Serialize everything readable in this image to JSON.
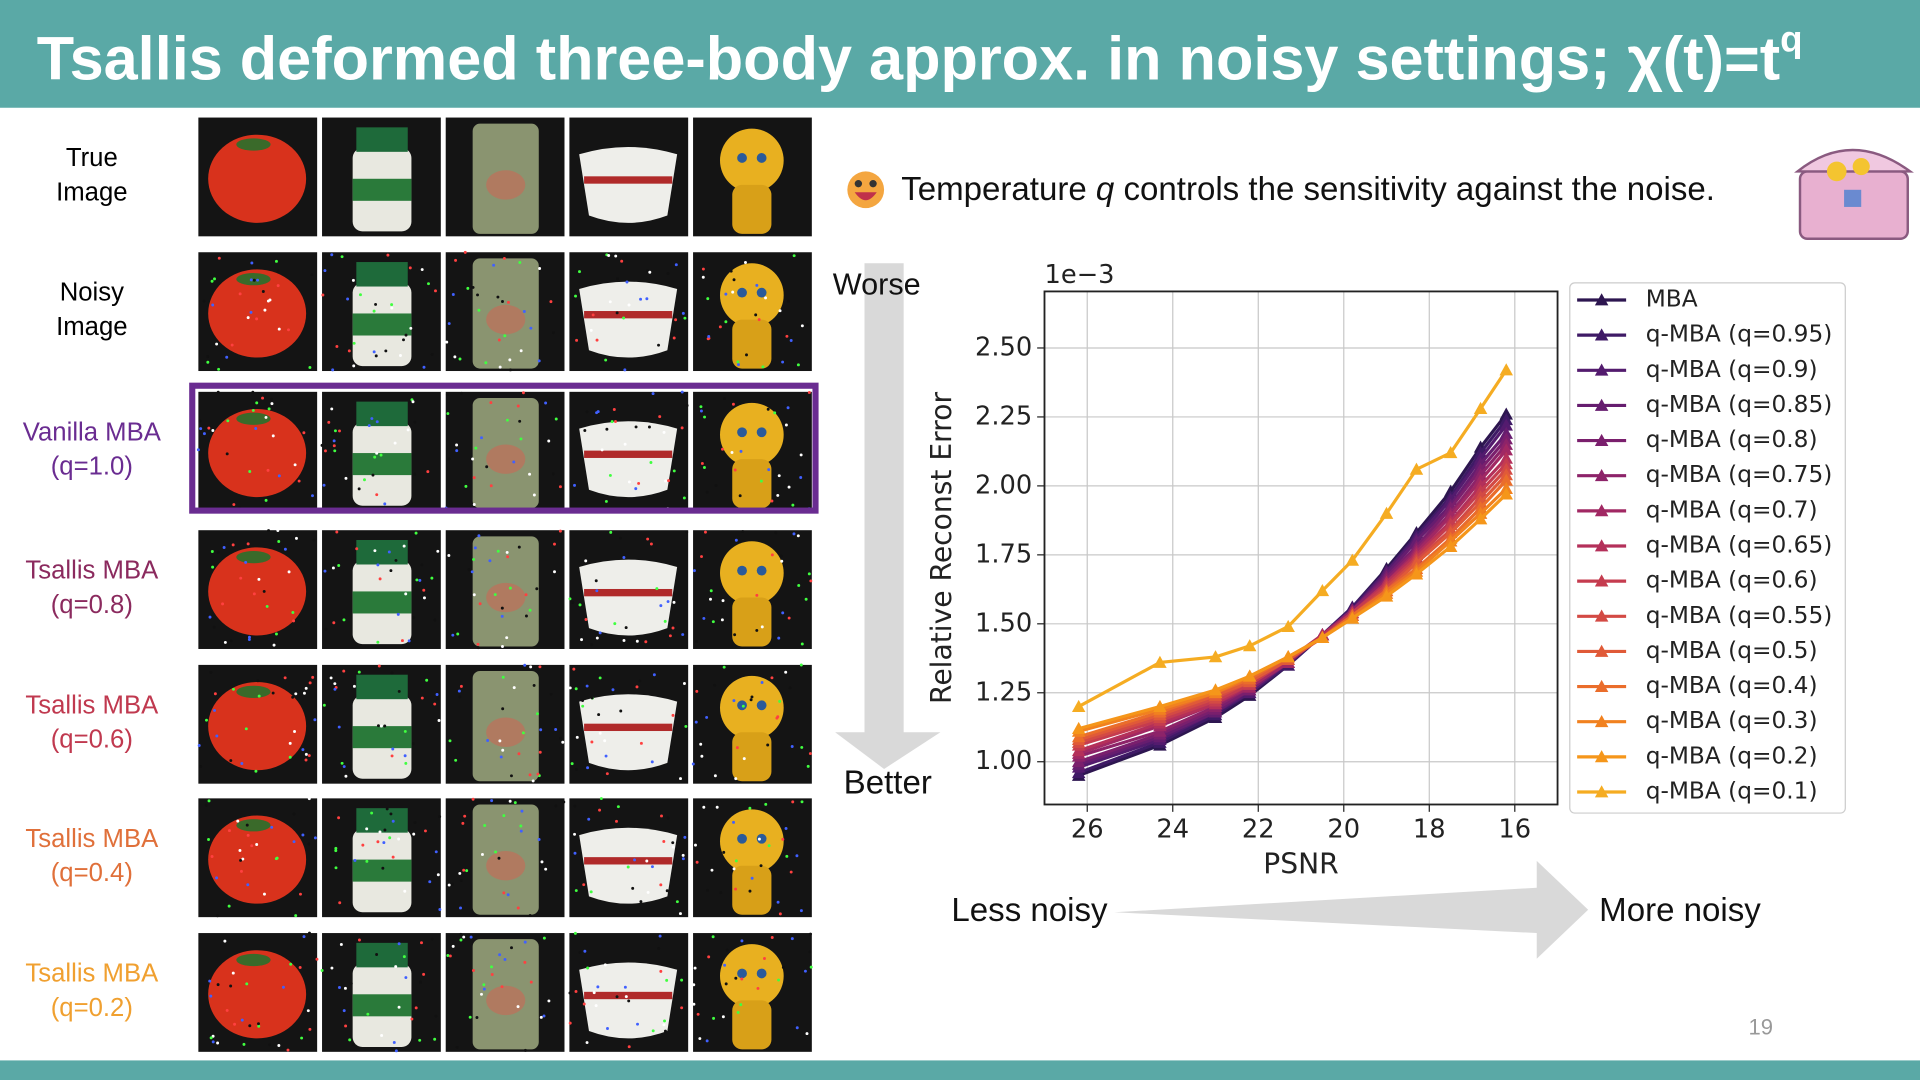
{
  "header": {
    "title": "Tsallis deformed three-body approx. in noisy settings; χ(t)=t",
    "title_superscript": "q"
  },
  "rows": [
    {
      "line1": "True",
      "line2": "Image",
      "color": "#000000"
    },
    {
      "line1": "Noisy",
      "line2": "Image",
      "color": "#000000"
    },
    {
      "line1": "Vanilla MBA",
      "line2": "(q=1.0)",
      "color": "#6a2c91"
    },
    {
      "line1": "Tsallis MBA",
      "line2": "(q=0.8)",
      "color": "#8b2a5e"
    },
    {
      "line1": "Tsallis MBA",
      "line2": "(q=0.6)",
      "color": "#c0394f"
    },
    {
      "line1": "Tsallis MBA",
      "line2": "(q=0.4)",
      "color": "#e0703a"
    },
    {
      "line1": "Tsallis MBA",
      "line2": "(q=0.2)",
      "color": "#f0a030"
    }
  ],
  "note": {
    "before": "Temperature ",
    "italic": "q",
    "after": " controls the sensitivity against the noise."
  },
  "arrows": {
    "top": "Worse",
    "bottom": "Better",
    "left": "Less noisy",
    "right": "More noisy"
  },
  "page_number": "19",
  "chart_data": {
    "type": "line",
    "x_label": "PSNR",
    "y_label": "Relative Reconst Error",
    "y_offset_label": "1e−3",
    "xlim": [
      27.0,
      15.0
    ],
    "ylim": [
      0.845,
      2.705
    ],
    "xticks": [
      26,
      24,
      22,
      20,
      18,
      16
    ],
    "yticks": [
      {
        "value": 1.0,
        "label": "1.00"
      },
      {
        "value": 1.25,
        "label": "1.25"
      },
      {
        "value": 1.5,
        "label": "1.50"
      },
      {
        "value": 1.75,
        "label": "1.75"
      },
      {
        "value": 2.0,
        "label": "2.00"
      },
      {
        "value": 2.25,
        "label": "2.25"
      },
      {
        "value": 2.5,
        "label": "2.50"
      }
    ],
    "grid": true,
    "legend": "right",
    "x": [
      26.2,
      24.3,
      23.0,
      22.2,
      21.3,
      20.5,
      19.8,
      19.0,
      18.3,
      17.5,
      16.8,
      16.2
    ],
    "series": [
      {
        "name": "MBA",
        "color": "#2d1650",
        "values": [
          0.95,
          1.06,
          1.16,
          1.24,
          1.35,
          1.46,
          1.56,
          1.7,
          1.83,
          1.98,
          2.14,
          2.26
        ]
      },
      {
        "name": "q-MBA (q=0.95)",
        "color": "#3f1a66",
        "values": [
          0.96,
          1.07,
          1.17,
          1.25,
          1.35,
          1.46,
          1.56,
          1.69,
          1.82,
          1.96,
          2.12,
          2.24
        ]
      },
      {
        "name": "q-MBA (q=0.9)",
        "color": "#531b6e",
        "values": [
          0.98,
          1.08,
          1.18,
          1.25,
          1.36,
          1.46,
          1.55,
          1.69,
          1.81,
          1.95,
          2.1,
          2.22
        ]
      },
      {
        "name": "q-MBA (q=0.85)",
        "color": "#661d6f",
        "values": [
          0.99,
          1.09,
          1.18,
          1.26,
          1.36,
          1.46,
          1.55,
          1.68,
          1.8,
          1.93,
          2.08,
          2.19
        ]
      },
      {
        "name": "q-MBA (q=0.8)",
        "color": "#7a1f6d",
        "values": [
          1.0,
          1.1,
          1.19,
          1.26,
          1.36,
          1.46,
          1.55,
          1.67,
          1.78,
          1.92,
          2.06,
          2.17
        ]
      },
      {
        "name": "q-MBA (q=0.75)",
        "color": "#8d2369",
        "values": [
          1.02,
          1.11,
          1.2,
          1.27,
          1.36,
          1.46,
          1.55,
          1.66,
          1.77,
          1.9,
          2.04,
          2.15
        ]
      },
      {
        "name": "q-MBA (q=0.7)",
        "color": "#a12863",
        "values": [
          1.03,
          1.13,
          1.21,
          1.27,
          1.36,
          1.46,
          1.54,
          1.65,
          1.76,
          1.89,
          2.02,
          2.13
        ]
      },
      {
        "name": "q-MBA (q=0.65)",
        "color": "#b4305a",
        "values": [
          1.04,
          1.14,
          1.21,
          1.28,
          1.37,
          1.46,
          1.54,
          1.65,
          1.75,
          1.87,
          2.0,
          2.1
        ]
      },
      {
        "name": "q-MBA (q=0.6)",
        "color": "#c53c4f",
        "values": [
          1.06,
          1.15,
          1.22,
          1.28,
          1.37,
          1.45,
          1.54,
          1.64,
          1.74,
          1.86,
          1.98,
          2.08
        ]
      },
      {
        "name": "q-MBA (q=0.55)",
        "color": "#d34a44",
        "values": [
          1.07,
          1.16,
          1.23,
          1.29,
          1.37,
          1.45,
          1.53,
          1.63,
          1.73,
          1.84,
          1.96,
          2.06
        ]
      },
      {
        "name": "q-MBA (q=0.5)",
        "color": "#e05a38",
        "values": [
          1.08,
          1.17,
          1.24,
          1.29,
          1.37,
          1.45,
          1.53,
          1.62,
          1.72,
          1.83,
          1.94,
          2.04
        ]
      },
      {
        "name": "q-MBA (q=0.4)",
        "color": "#ea6d2b",
        "values": [
          1.09,
          1.18,
          1.25,
          1.3,
          1.38,
          1.45,
          1.53,
          1.62,
          1.7,
          1.81,
          1.92,
          2.02
        ]
      },
      {
        "name": "q-MBA (q=0.3)",
        "color": "#f1811f",
        "values": [
          1.11,
          1.19,
          1.25,
          1.31,
          1.38,
          1.45,
          1.52,
          1.61,
          1.69,
          1.8,
          1.9,
          1.99
        ]
      },
      {
        "name": "q-MBA (q=0.2)",
        "color": "#f5961a",
        "values": [
          1.12,
          1.2,
          1.26,
          1.31,
          1.38,
          1.45,
          1.52,
          1.6,
          1.68,
          1.78,
          1.88,
          1.97
        ]
      },
      {
        "name": "q-MBA (q=0.1)",
        "color": "#f5ac22",
        "values": [
          1.2,
          1.36,
          1.38,
          1.42,
          1.49,
          1.62,
          1.73,
          1.9,
          2.06,
          2.12,
          2.28,
          2.42
        ]
      }
    ]
  }
}
